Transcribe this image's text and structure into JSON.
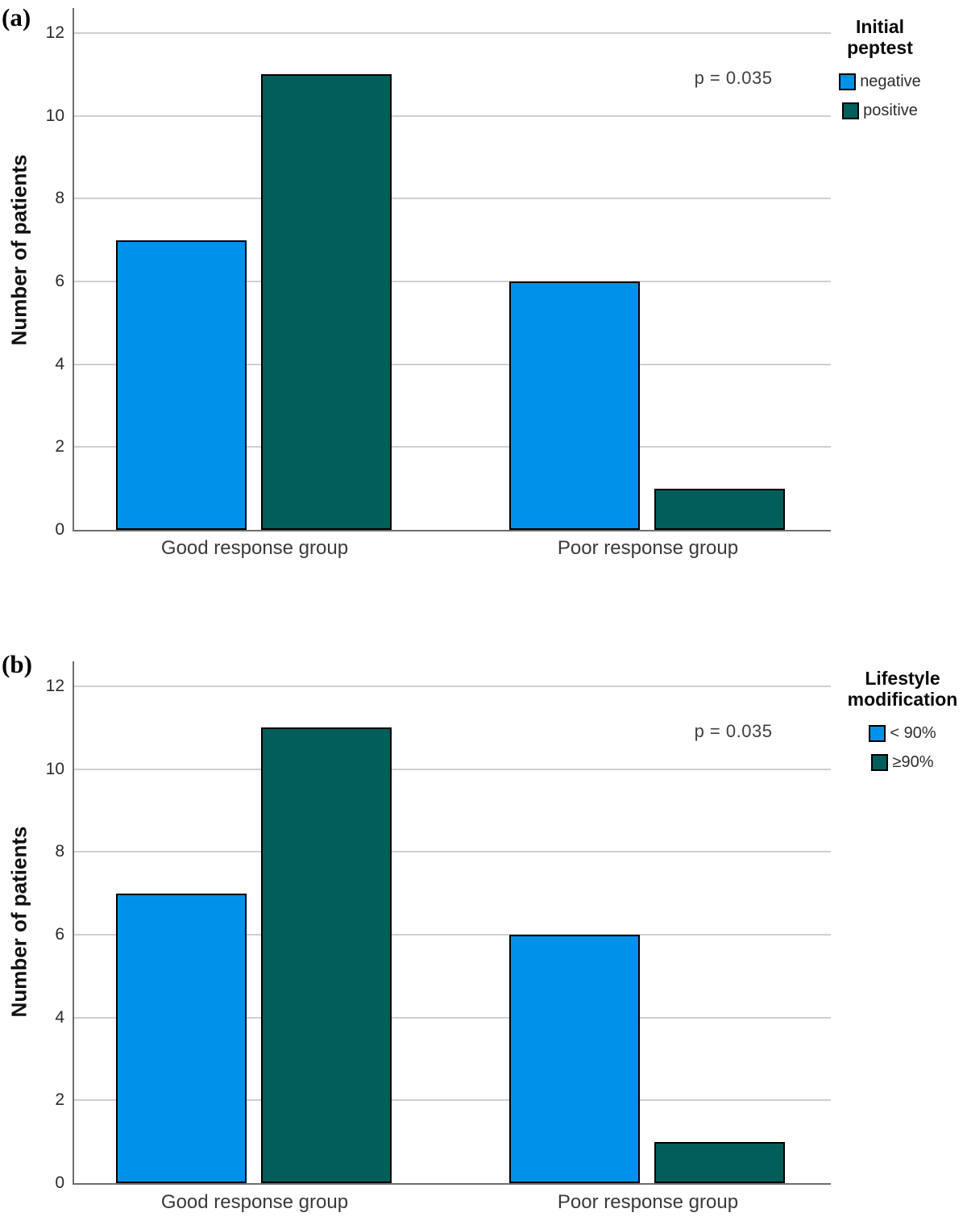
{
  "figure": {
    "background": "#ffffff",
    "description": "Two grouped bar charts comparing number of patients by response group"
  },
  "colors": {
    "series_blue": "#0092ea",
    "series_teal": "#015e5b",
    "gridline": "#cfcfcf",
    "axis": "#6e6e6e",
    "bar_border": "#000000"
  },
  "chart_data": [
    {
      "type": "bar",
      "panel_label": "(a)",
      "categories": [
        "Good response group",
        "Poor response group"
      ],
      "series": [
        {
          "name": "negative",
          "color_key": "series_blue",
          "values": [
            7,
            6
          ]
        },
        {
          "name": "positive",
          "color_key": "series_teal",
          "values": [
            11,
            1
          ]
        }
      ],
      "xlabel": "",
      "ylabel": "Number of patients",
      "yticks": [
        0,
        2,
        4,
        6,
        8,
        10,
        12
      ],
      "ylim": [
        0,
        12.6
      ],
      "grid": true,
      "annotation": "p = 0.035",
      "legend": {
        "position": "right-outside-top",
        "title_lines": [
          "Initial",
          "peptest"
        ]
      }
    },
    {
      "type": "bar",
      "panel_label": "(b)",
      "categories": [
        "Good response group",
        "Poor response group"
      ],
      "series": [
        {
          "name": "< 90%",
          "color_key": "series_blue",
          "values": [
            7,
            6
          ]
        },
        {
          "name": "≥90%",
          "color_key": "series_teal",
          "values": [
            11,
            1
          ]
        }
      ],
      "xlabel": "",
      "ylabel": "Number of patients",
      "yticks": [
        0,
        2,
        4,
        6,
        8,
        10,
        12
      ],
      "ylim": [
        0,
        12.6
      ],
      "grid": true,
      "annotation": "p = 0.035",
      "legend": {
        "position": "right-outside-top",
        "title_lines": [
          "Lifestyle",
          "modification"
        ]
      }
    }
  ]
}
